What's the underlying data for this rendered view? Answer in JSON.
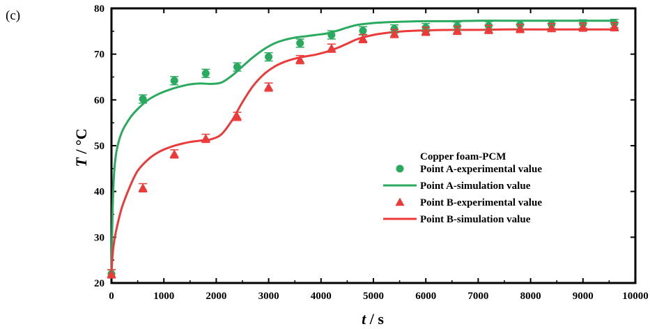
{
  "panel_label": "(c)",
  "chart_data": {
    "type": "line",
    "xlabel_italic": "t",
    "xlabel_unit": " / s",
    "ylabel_italic": "T",
    "ylabel_unit": " / °C",
    "xlim": [
      0,
      10000
    ],
    "ylim": [
      20,
      80
    ],
    "x_ticks": [
      0,
      1000,
      2000,
      3000,
      4000,
      5000,
      6000,
      7000,
      8000,
      9000,
      10000
    ],
    "y_ticks": [
      20,
      30,
      40,
      50,
      60,
      70,
      80
    ],
    "legend_title": "Copper foam-PCM",
    "legend_position": "center-right",
    "grid": false,
    "series": [
      {
        "name": "Point A-experimental value",
        "kind": "scatter",
        "marker": "circle",
        "color": "#2aaa5e",
        "x": [
          0,
          600,
          1200,
          1800,
          2400,
          3000,
          3600,
          4200,
          4800,
          5400,
          6000,
          6600,
          7200,
          7800,
          8400,
          9000,
          9600
        ],
        "y": [
          22.0,
          60.2,
          64.2,
          65.8,
          67.2,
          69.4,
          72.4,
          74.2,
          75.1,
          75.5,
          75.8,
          76.1,
          76.2,
          76.4,
          76.5,
          76.6,
          76.7
        ],
        "error": 0.9
      },
      {
        "name": "Point A-simulation value",
        "kind": "line",
        "color": "#2aaa5e",
        "x": [
          0,
          20,
          50,
          100,
          200,
          350,
          500,
          700,
          900,
          1100,
          1300,
          1500,
          1700,
          1900,
          2100,
          2300,
          2500,
          2700,
          2900,
          3100,
          3300,
          3500,
          3700,
          3900,
          4100,
          4300,
          4500,
          4700,
          5000,
          5300,
          5600,
          6000,
          6500,
          7000,
          7500,
          8000,
          8500,
          9000,
          9600
        ],
        "y": [
          22.0,
          35.0,
          44.0,
          49.0,
          53.0,
          56.0,
          58.0,
          60.0,
          61.3,
          62.2,
          62.9,
          63.4,
          63.6,
          63.5,
          63.8,
          65.3,
          67.3,
          69.3,
          71.0,
          72.3,
          73.1,
          73.6,
          73.9,
          74.2,
          74.5,
          75.1,
          75.8,
          76.4,
          76.8,
          77.0,
          77.1,
          77.2,
          77.2,
          77.3,
          77.3,
          77.3,
          77.3,
          77.3,
          77.3
        ]
      },
      {
        "name": "Point B-experimental value",
        "kind": "scatter",
        "marker": "triangle",
        "color": "#ec3a3a",
        "x": [
          0,
          600,
          1200,
          1800,
          2400,
          3000,
          3600,
          4200,
          4800,
          5400,
          6000,
          6600,
          7200,
          7800,
          8400,
          9000,
          9600
        ],
        "y": [
          22.0,
          40.8,
          48.2,
          51.6,
          56.4,
          62.8,
          68.8,
          71.3,
          73.4,
          74.5,
          75.0,
          75.2,
          75.4,
          75.6,
          75.8,
          75.9,
          76.0
        ],
        "error": 0.9
      },
      {
        "name": "Point B-simulation value",
        "kind": "line",
        "color": "#ec3a3a",
        "x": [
          0,
          20,
          50,
          100,
          200,
          350,
          500,
          700,
          900,
          1100,
          1300,
          1500,
          1700,
          1900,
          2100,
          2300,
          2500,
          2700,
          2900,
          3100,
          3300,
          3500,
          3700,
          3900,
          4100,
          4300,
          4500,
          4700,
          5000,
          5300,
          5600,
          6000,
          6500,
          7000,
          7500,
          8000,
          8500,
          9000,
          9600
        ],
        "y": [
          22.0,
          26.0,
          29.0,
          32.0,
          36.5,
          41.0,
          44.5,
          47.0,
          48.6,
          49.6,
          50.3,
          50.8,
          51.1,
          51.4,
          52.5,
          55.5,
          59.5,
          63.0,
          65.5,
          67.2,
          68.3,
          69.0,
          69.5,
          69.9,
          70.5,
          71.3,
          72.3,
          73.3,
          74.2,
          74.7,
          75.0,
          75.2,
          75.3,
          75.3,
          75.4,
          75.4,
          75.4,
          75.4,
          75.4
        ]
      }
    ]
  }
}
